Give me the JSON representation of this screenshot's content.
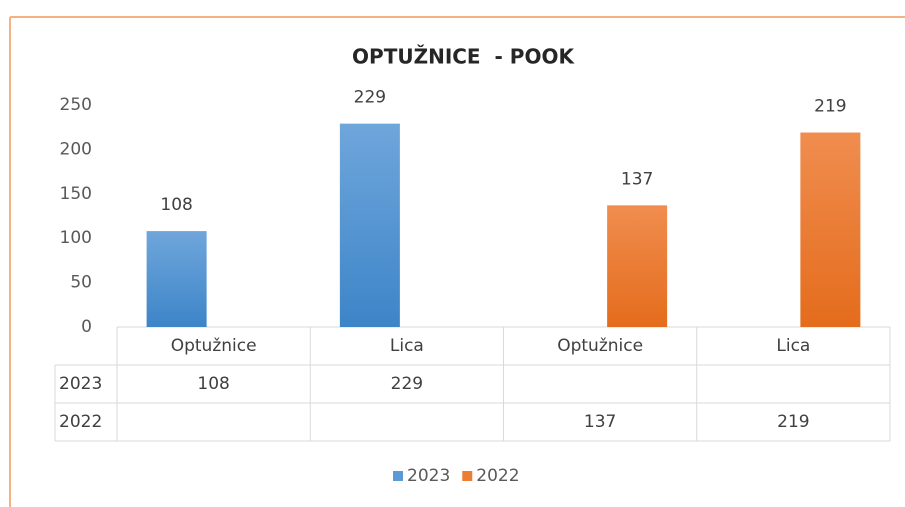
{
  "chart_data": {
    "type": "bar",
    "title": "OPTUŽNICE  - POOK",
    "categories": [
      "Optužnice",
      "Lica",
      "Optužnice",
      "Lica"
    ],
    "series": [
      {
        "name": "2023",
        "color": "#5b9bd5",
        "values": [
          108,
          229,
          null,
          null
        ]
      },
      {
        "name": "2022",
        "color": "#ed7d31",
        "values": [
          null,
          null,
          137,
          219
        ]
      }
    ],
    "ylim": [
      0,
      250
    ],
    "yticks": [
      0,
      50,
      100,
      150,
      200,
      250
    ],
    "grid": false,
    "legend": "bottom",
    "data_table": true
  }
}
